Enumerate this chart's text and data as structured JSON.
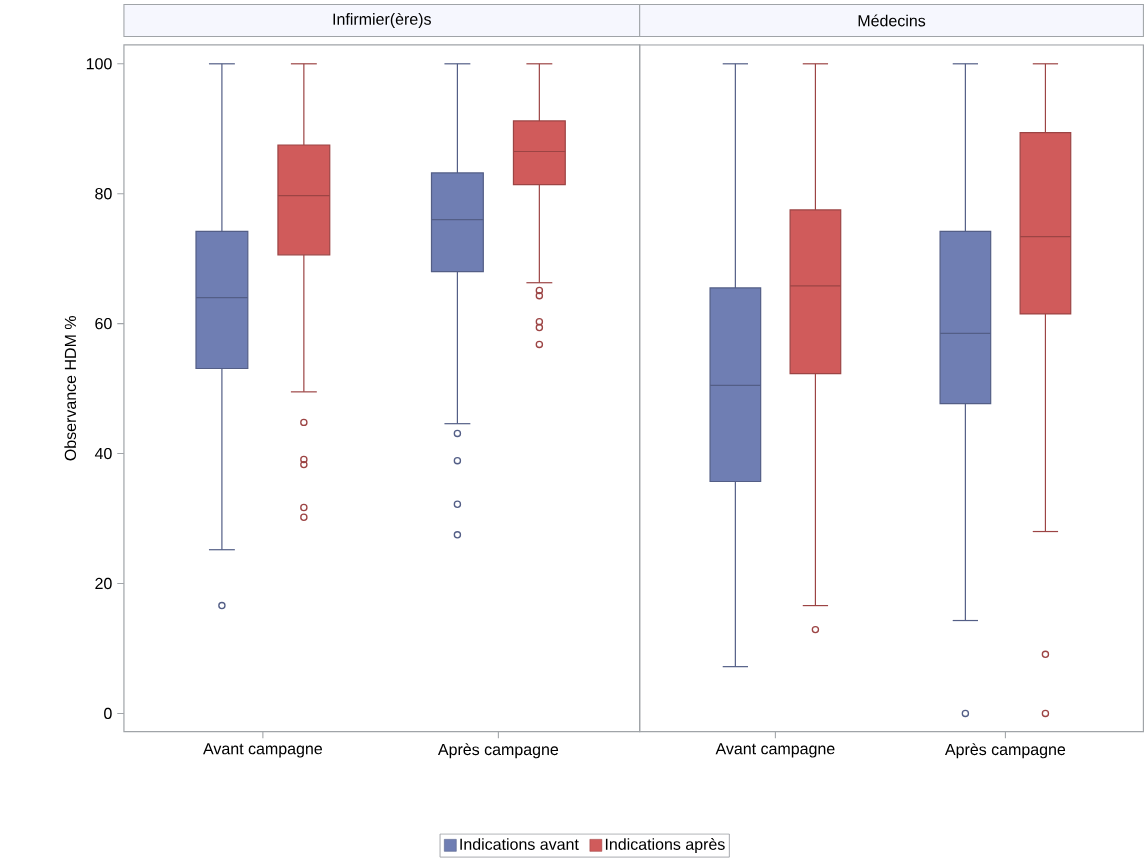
{
  "chart_data": [
    {
      "type": "box",
      "title": "Infirmier(ère)s",
      "ylabel": "Observance HDM %",
      "categories": [
        "Avant campagne",
        "Après campagne"
      ],
      "ylim": [
        -2.8,
        102.9
      ],
      "yticks": [
        0,
        20,
        40,
        60,
        80,
        100
      ],
      "legend": "bottom",
      "series": [
        {
          "name": "Indications avant",
          "color": "#6f7eb3",
          "boxes": [
            {
              "low": 25.2,
              "q1": 53.1,
              "median": 64.0,
              "q3": 74.2,
              "high": 100,
              "outliers": [
                16.6
              ]
            },
            {
              "low": 44.6,
              "q1": 68.0,
              "median": 76.0,
              "q3": 83.2,
              "high": 100,
              "outliers": [
                43.1,
                38.9,
                32.2,
                27.5
              ]
            }
          ]
        },
        {
          "name": "Indications après",
          "color": "#d05b5b",
          "boxes": [
            {
              "low": 49.5,
              "q1": 70.6,
              "median": 79.7,
              "q3": 87.5,
              "high": 100,
              "outliers": [
                44.8,
                39.1,
                38.3,
                31.7,
                30.2
              ]
            },
            {
              "low": 66.3,
              "q1": 81.4,
              "median": 86.5,
              "q3": 91.2,
              "high": 100,
              "outliers": [
                65.1,
                64.3,
                60.3,
                59.4,
                56.8
              ]
            }
          ]
        }
      ]
    },
    {
      "type": "box",
      "title": "Médecins",
      "categories": [
        "Avant campagne",
        "Après campagne"
      ],
      "ylim": [
        -2.8,
        102.9
      ],
      "yticks": [
        0,
        20,
        40,
        60,
        80,
        100
      ],
      "tick_labels": "x",
      "series": [
        {
          "color": "#6f7eb3",
          "boxes": [
            {
              "low": 7.2,
              "q1": 35.7,
              "median": 50.5,
              "q3": 65.5,
              "high": 100
            },
            {
              "low": 14.3,
              "q1": 47.7,
              "median": 58.5,
              "q3": 74.2,
              "high": 100,
              "outliers": [
                0
              ]
            }
          ]
        },
        {
          "color": "#d05b5b",
          "boxes": [
            {
              "low": 16.6,
              "q1": 52.3,
              "median": 65.8,
              "q3": 77.5,
              "high": 100,
              "outliers": [
                12.9
              ]
            },
            {
              "low": 28.0,
              "q1": 61.5,
              "median": 73.4,
              "q3": 89.4,
              "high": 100,
              "outliers": [
                9.1,
                0
              ]
            }
          ]
        }
      ]
    }
  ]
}
